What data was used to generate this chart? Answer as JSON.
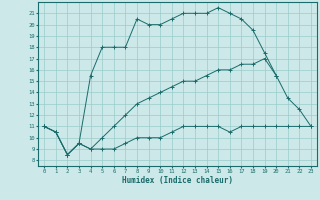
{
  "xlabel": "Humidex (Indice chaleur)",
  "xlim": [
    -0.5,
    23.5
  ],
  "ylim": [
    7.5,
    22
  ],
  "yticks": [
    8,
    9,
    10,
    11,
    12,
    13,
    14,
    15,
    16,
    17,
    18,
    19,
    20,
    21
  ],
  "xticks": [
    0,
    1,
    2,
    3,
    4,
    5,
    6,
    7,
    8,
    9,
    10,
    11,
    12,
    13,
    14,
    15,
    16,
    17,
    18,
    19,
    20,
    21,
    22,
    23
  ],
  "bg_color": "#cce8e8",
  "line_color": "#1a6b6b",
  "grid_color": "#99cccc",
  "lines": [
    {
      "x": [
        0,
        1,
        2,
        3,
        4,
        5,
        6,
        7,
        8,
        9,
        10,
        11,
        12,
        13,
        14,
        15,
        16,
        17,
        18,
        19,
        20,
        21,
        22,
        23
      ],
      "y": [
        11,
        10.5,
        8.5,
        9.5,
        9,
        9,
        9,
        9.5,
        10,
        10,
        10,
        10.5,
        11,
        11,
        11,
        11,
        10.5,
        11,
        11,
        11,
        11,
        11,
        11,
        11
      ]
    },
    {
      "x": [
        0,
        1,
        2,
        3,
        4,
        5,
        6,
        7,
        8,
        9,
        10,
        11,
        12,
        13,
        14,
        15,
        16,
        17,
        18,
        19,
        20,
        21,
        22,
        23
      ],
      "y": [
        11,
        10.5,
        8.5,
        9.5,
        9,
        10,
        11,
        12,
        13,
        13.5,
        14,
        14.5,
        15,
        15,
        15.5,
        16,
        16,
        16.5,
        16.5,
        17,
        15.5,
        13.5,
        12.5,
        11
      ]
    },
    {
      "x": [
        0,
        1,
        2,
        3,
        4,
        5,
        6,
        7,
        8,
        9,
        10,
        11,
        12,
        13,
        14,
        15,
        16,
        17,
        18,
        19,
        20
      ],
      "y": [
        11,
        10.5,
        8.5,
        9.5,
        15.5,
        18,
        18,
        18,
        20.5,
        20,
        20,
        20.5,
        21,
        21,
        21,
        21.5,
        21,
        20.5,
        19.5,
        17.5,
        15.5
      ]
    }
  ]
}
